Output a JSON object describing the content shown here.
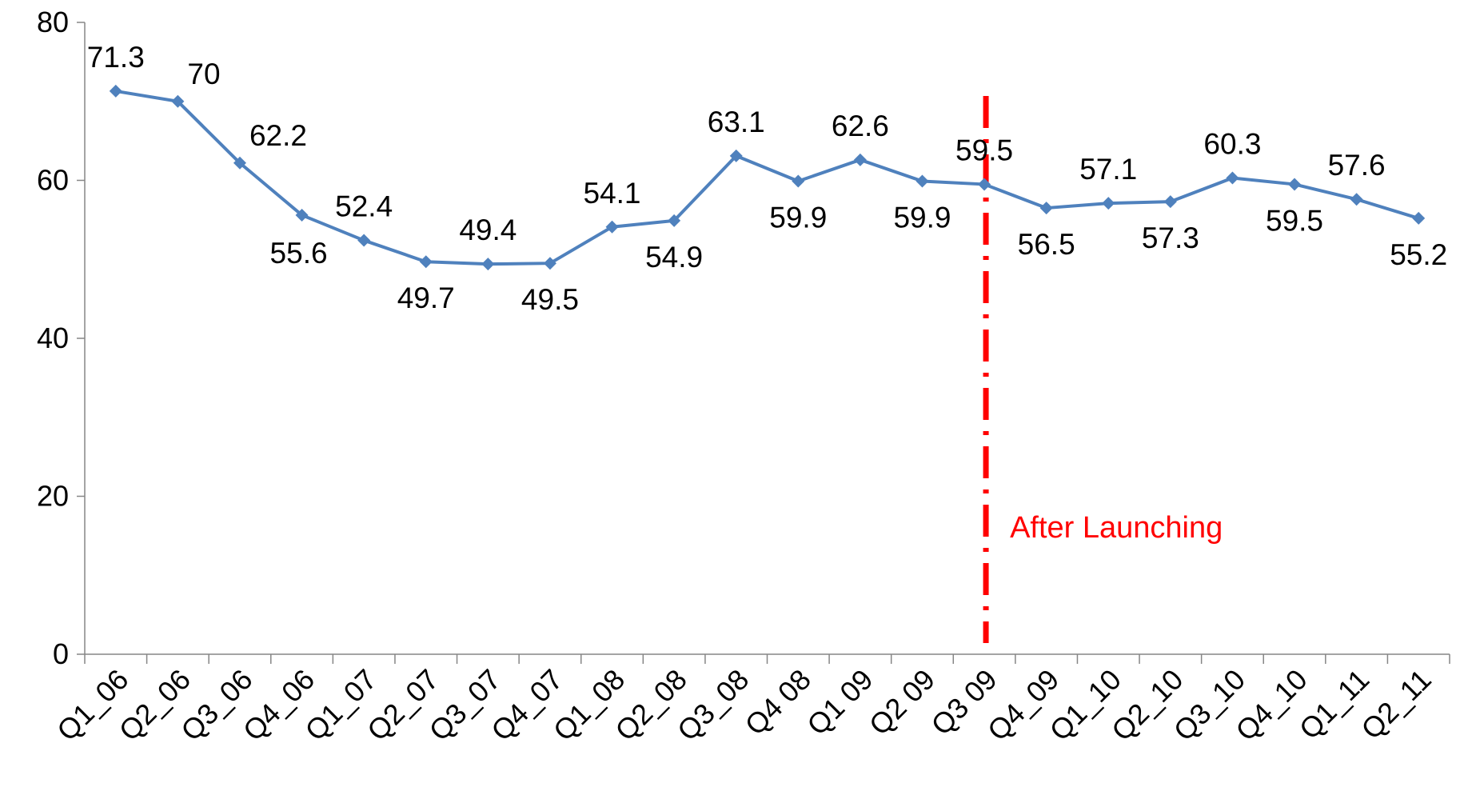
{
  "chart_data": {
    "type": "line",
    "title": "",
    "xlabel": "",
    "ylabel": "",
    "ylim": [
      0,
      80
    ],
    "yticks": [
      0,
      20,
      40,
      60,
      80
    ],
    "ytick_labels": [
      "0",
      "20",
      "40",
      "60",
      "80"
    ],
    "grid": false,
    "legend": "none",
    "categories": [
      "Q1_06",
      "Q2_06",
      "Q3_06",
      "Q4_06",
      "Q1_07",
      "Q2_07",
      "Q3_07",
      "Q4_07",
      "Q1_08",
      "Q2_08",
      "Q3_08",
      "Q4 08",
      "Q1 09",
      "Q2 09",
      "Q3 09",
      "Q4_09",
      "Q1_10",
      "Q2_10",
      "Q3_10",
      "Q4_10",
      "Q1_11",
      "Q2_11"
    ],
    "series": [
      {
        "values": [
          71.3,
          70,
          62.2,
          55.6,
          52.4,
          49.7,
          49.4,
          49.5,
          54.1,
          54.9,
          63.1,
          59.9,
          62.6,
          59.9,
          59.5,
          56.5,
          57.1,
          57.3,
          60.3,
          59.5,
          57.6,
          55.2
        ],
        "data_labels": [
          "71.3",
          "70",
          "62.2",
          "55.6",
          "52.4",
          "49.7",
          "49.4",
          "49.5",
          "54.1",
          "54.9",
          "63.1",
          "59.9",
          "62.6",
          "59.9",
          "59.5",
          "56.5",
          "57.1",
          "57.3",
          "60.3",
          "59.5",
          "57.6",
          "55.2"
        ],
        "label_position": [
          "above",
          "above-right",
          "above-right",
          "below-left",
          "above",
          "below",
          "above",
          "below",
          "above",
          "below",
          "above",
          "below",
          "above",
          "below",
          "above",
          "below",
          "above",
          "below",
          "above",
          "below",
          "above",
          "below"
        ],
        "color": "#4F81BD",
        "marker": "diamond"
      }
    ],
    "annotations": [
      {
        "type": "vertical-line",
        "x_category": "Q3 09",
        "color": "#FF0000",
        "style": "dash-dot",
        "label": "After Launching"
      }
    ]
  }
}
